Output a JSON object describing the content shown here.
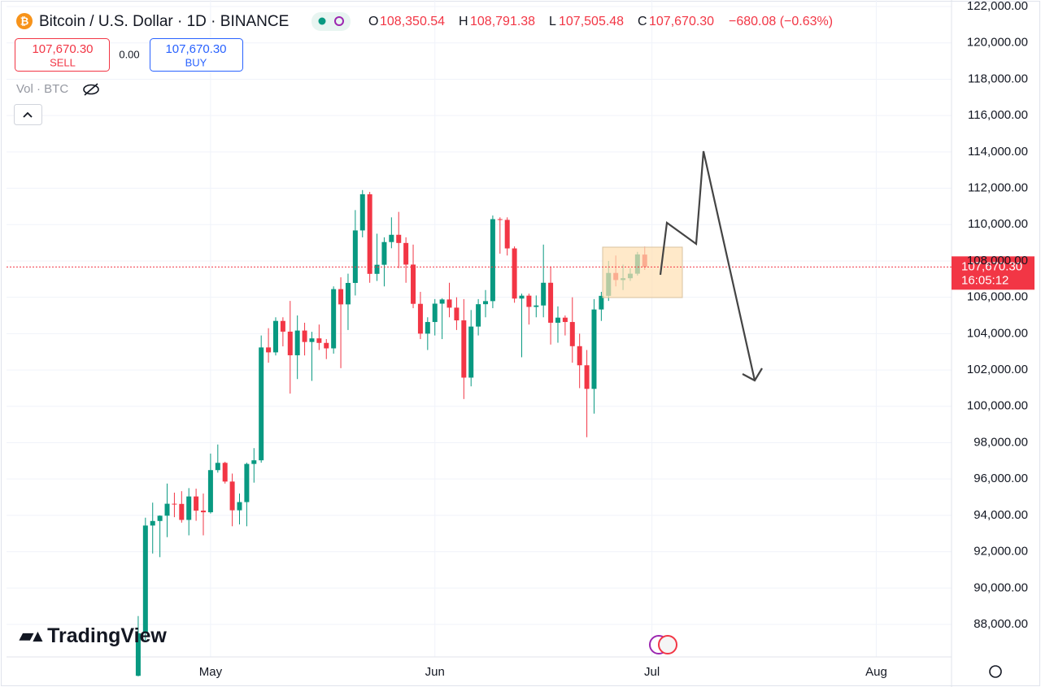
{
  "header": {
    "title": "Bitcoin / U.S. Dollar · 1D · BINANCE",
    "ohlc": [
      {
        "label": "O",
        "value": "108,350.54"
      },
      {
        "label": "H",
        "value": "108,791.38"
      },
      {
        "label": "L",
        "value": "107,505.48"
      },
      {
        "label": "C",
        "value": "107,670.30"
      }
    ],
    "change": "−680.08 (−0.63%)",
    "sell": {
      "price": "107,670.30",
      "label": "SELL"
    },
    "spread": "0.00",
    "buy": {
      "price": "107,670.30",
      "label": "BUY"
    },
    "volume": "Vol · BTC",
    "logo": "TradingView"
  },
  "chart_data": {
    "type": "candlestick",
    "up_color": "#089981",
    "down_color": "#f23645",
    "open": [
      85170,
      87510,
      93440,
      93690,
      93980,
      94640,
      94630,
      93750,
      95040,
      94260,
      94170,
      96490,
      96890,
      95860,
      94280,
      94730,
      96830,
      97030,
      103240,
      102970,
      104700,
      104110,
      102810,
      104170,
      103540,
      103740,
      103490,
      103190,
      106450,
      105610,
      106790,
      109680,
      111670,
      107290,
      107790,
      109040,
      109440,
      108990,
      107800,
      105640,
      104000,
      104640,
      105650,
      105880,
      105430,
      104730,
      101580,
      104390,
      105620,
      105790,
      110300,
      110260,
      108690,
      105930,
      106090,
      105470,
      105550,
      106800,
      104600,
      104880,
      104640,
      103310,
      102260,
      100960,
      105330,
      106080,
      107340,
      106950,
      107050,
      107300,
      108350.54
    ],
    "high": [
      88460,
      93870,
      94700,
      94000,
      95750,
      95250,
      95330,
      95500,
      95470,
      95200,
      97400,
      97900,
      96950,
      96300,
      95200,
      96900,
      97700,
      103900,
      104300,
      104900,
      104900,
      105800,
      105000,
      104600,
      104100,
      104500,
      103700,
      106600,
      107100,
      107300,
      110800,
      111900,
      111800,
      109500,
      109300,
      110400,
      110700,
      109300,
      108900,
      106300,
      104900,
      105900,
      105950,
      106800,
      106000,
      105900,
      105300,
      105900,
      106400,
      110500,
      110400,
      110400,
      108800,
      106200,
      106200,
      106100,
      108900,
      107700,
      105500,
      105000,
      106000,
      104000,
      103100,
      105900,
      106300,
      108000,
      108300,
      107800,
      107600,
      108500,
      108791.38
    ],
    "low": [
      85140,
      87080,
      91900,
      91700,
      92800,
      93900,
      93600,
      92900,
      93700,
      92900,
      94100,
      96350,
      95750,
      93400,
      93500,
      93400,
      95800,
      96900,
      102400,
      102800,
      103300,
      100700,
      101500,
      102800,
      101400,
      103100,
      102600,
      102900,
      102100,
      104200,
      106100,
      109300,
      106800,
      106900,
      106600,
      108700,
      107600,
      106800,
      105400,
      103700,
      103100,
      103900,
      103700,
      104900,
      104200,
      100400,
      101100,
      103900,
      104900,
      105400,
      108400,
      108300,
      105700,
      102700,
      104500,
      104900,
      104900,
      103400,
      103500,
      103900,
      102400,
      101000,
      98300,
      99600,
      104700,
      105800,
      106600,
      106400,
      106900,
      107200,
      107505.48
    ],
    "close": [
      87510,
      93440,
      93690,
      93980,
      94640,
      94630,
      93750,
      95040,
      94260,
      94170,
      96490,
      96890,
      95860,
      94280,
      94730,
      96830,
      97030,
      103240,
      102970,
      104700,
      104110,
      102810,
      104170,
      103540,
      103740,
      103490,
      103190,
      106450,
      105610,
      106790,
      109680,
      111670,
      107290,
      107790,
      109040,
      109440,
      108990,
      107800,
      105640,
      104000,
      104640,
      105650,
      105880,
      105430,
      104730,
      101580,
      104390,
      105620,
      105790,
      110300,
      110260,
      108690,
      105930,
      106090,
      105470,
      105550,
      106800,
      104600,
      104880,
      104640,
      103310,
      102260,
      100960,
      105330,
      106080,
      107340,
      106950,
      107050,
      107300,
      108360,
      107670.3
    ],
    "xlim": [
      -18.2,
      112.4
    ],
    "xticks": [
      {
        "value": 10,
        "label": "May"
      },
      {
        "value": 41,
        "label": "Jun"
      },
      {
        "value": 71,
        "label": "Jul"
      },
      {
        "value": 102,
        "label": "Aug"
      }
    ],
    "ylim": [
      86210,
      122360
    ],
    "yticks": [
      {
        "value": 88000,
        "label": "88,000.00"
      },
      {
        "value": 90000,
        "label": "90,000.00"
      },
      {
        "value": 92000,
        "label": "92,000.00"
      },
      {
        "value": 94000,
        "label": "94,000.00"
      },
      {
        "value": 96000,
        "label": "96,000.00"
      },
      {
        "value": 98000,
        "label": "98,000.00"
      },
      {
        "value": 100000,
        "label": "100,000.00"
      },
      {
        "value": 102000,
        "label": "102,000.00"
      },
      {
        "value": 104000,
        "label": "104,000.00"
      },
      {
        "value": 106000,
        "label": "106,000.00"
      },
      {
        "value": 108000,
        "label": "108,000.00"
      },
      {
        "value": 110000,
        "label": "110,000.00"
      },
      {
        "value": 112000,
        "label": "112,000.00"
      },
      {
        "value": 114000,
        "label": "114,000.00"
      },
      {
        "value": 116000,
        "label": "116,000.00"
      },
      {
        "value": 118000,
        "label": "118,000.00"
      },
      {
        "value": 120000,
        "label": "120,000.00"
      },
      {
        "value": 122000,
        "label": "122,000.00"
      }
    ],
    "grid": true,
    "last_price": {
      "value": 107670.3,
      "label": "107,670.30"
    },
    "countdown": "16:05:12"
  }
}
